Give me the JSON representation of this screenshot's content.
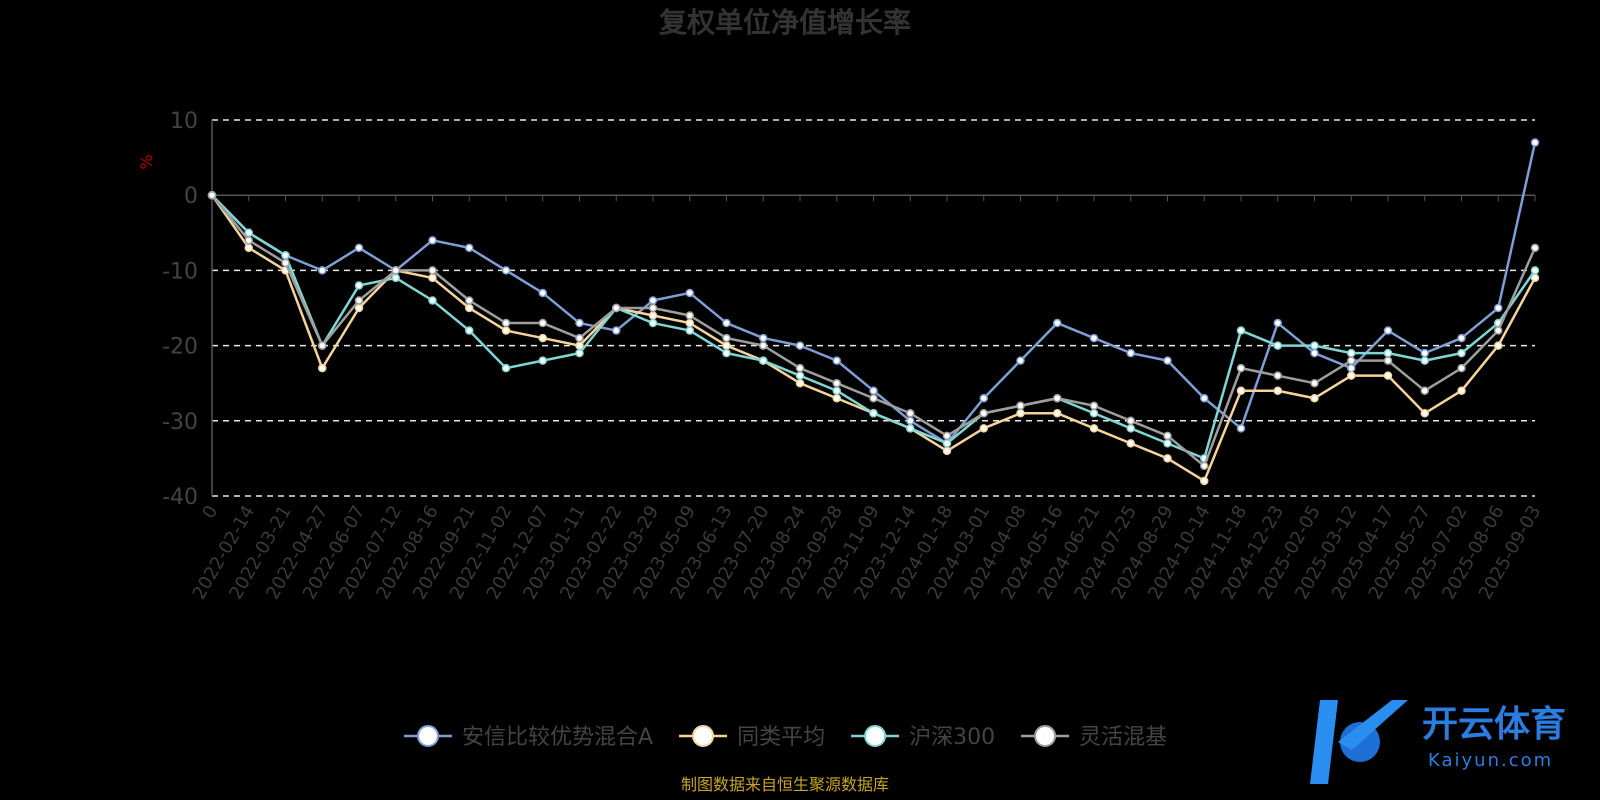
{
  "chart_data": {
    "type": "line",
    "title": "复权单位净值增长率",
    "ylabel": "%",
    "ylim": [
      -40,
      10
    ],
    "yticks": [
      10,
      0,
      -10,
      -20,
      -30,
      -40
    ],
    "grid": true,
    "legend_position": "bottom",
    "x_labels": [
      "0",
      "2022-02-14",
      "2022-03-21",
      "2022-04-27",
      "2022-06-07",
      "2022-07-12",
      "2022-08-16",
      "2022-09-21",
      "2022-11-02",
      "2022-12-07",
      "2023-01-11",
      "2023-02-22",
      "2023-03-29",
      "2023-05-09",
      "2023-06-13",
      "2023-07-20",
      "2023-08-24",
      "2023-09-28",
      "2023-11-09",
      "2023-12-14",
      "2024-01-18",
      "2024-03-01",
      "2024-04-08",
      "2024-05-16",
      "2024-06-21",
      "2024-07-25",
      "2024-08-29",
      "2024-10-14",
      "2024-11-18",
      "2024-12-23",
      "2025-02-05",
      "2025-03-12",
      "2025-04-17",
      "2025-05-27",
      "2025-07-02",
      "2025-08-06",
      "2025-09-03"
    ],
    "series": [
      {
        "name": "安信比较优势混合A",
        "color": "#7f9ed6",
        "values": [
          0,
          -5,
          -8,
          -10,
          -7,
          -10,
          -6,
          -7,
          -10,
          -13,
          -17,
          -18,
          -14,
          -13,
          -17,
          -19,
          -20,
          -22,
          -26,
          -30,
          -33,
          -27,
          -22,
          -17,
          -19,
          -21,
          -22,
          -27,
          -31,
          -17,
          -21,
          -23,
          -18,
          -21,
          -19,
          -15,
          7
        ]
      },
      {
        "name": "同类平均",
        "color": "#f5d49a",
        "values": [
          0,
          -7,
          -10,
          -23,
          -15,
          -10,
          -11,
          -15,
          -18,
          -19,
          -20,
          -15,
          -16,
          -17,
          -20,
          -22,
          -25,
          -27,
          -29,
          -31,
          -34,
          -31,
          -29,
          -29,
          -31,
          -33,
          -35,
          -38,
          -26,
          -26,
          -27,
          -24,
          -24,
          -29,
          -26,
          -20,
          -11
        ]
      },
      {
        "name": "沪深300",
        "color": "#7fd6d4",
        "values": [
          0,
          -5,
          -8,
          -20,
          -12,
          -11,
          -14,
          -18,
          -23,
          -22,
          -21,
          -15,
          -17,
          -18,
          -21,
          -22,
          -24,
          -26,
          -29,
          -31,
          -33,
          -29,
          -28,
          -27,
          -29,
          -31,
          -33,
          -35,
          -18,
          -20,
          -20,
          -21,
          -21,
          -22,
          -21,
          -17,
          -10
        ]
      },
      {
        "name": "灵活混基",
        "color": "#9e9e9e",
        "values": [
          0,
          -6,
          -9,
          -20,
          -14,
          -10,
          -10,
          -14,
          -17,
          -17,
          -19,
          -15,
          -15,
          -16,
          -19,
          -20,
          -23,
          -25,
          -27,
          -29,
          -32,
          -29,
          -28,
          -27,
          -28,
          -30,
          -32,
          -36,
          -23,
          -24,
          -25,
          -22,
          -22,
          -26,
          -23,
          -18,
          -7
        ]
      }
    ]
  },
  "legend": [
    {
      "label": "安信比较优势混合A",
      "color": "#7f9ed6"
    },
    {
      "label": "同类平均",
      "color": "#f5d49a"
    },
    {
      "label": "沪深300",
      "color": "#7fd6d4"
    },
    {
      "label": "灵活混基",
      "color": "#9e9e9e"
    }
  ],
  "source_note": "制图数据来自恒生聚源数据库",
  "logo": {
    "name": "开云体育",
    "site": "Kaiyun.com"
  }
}
